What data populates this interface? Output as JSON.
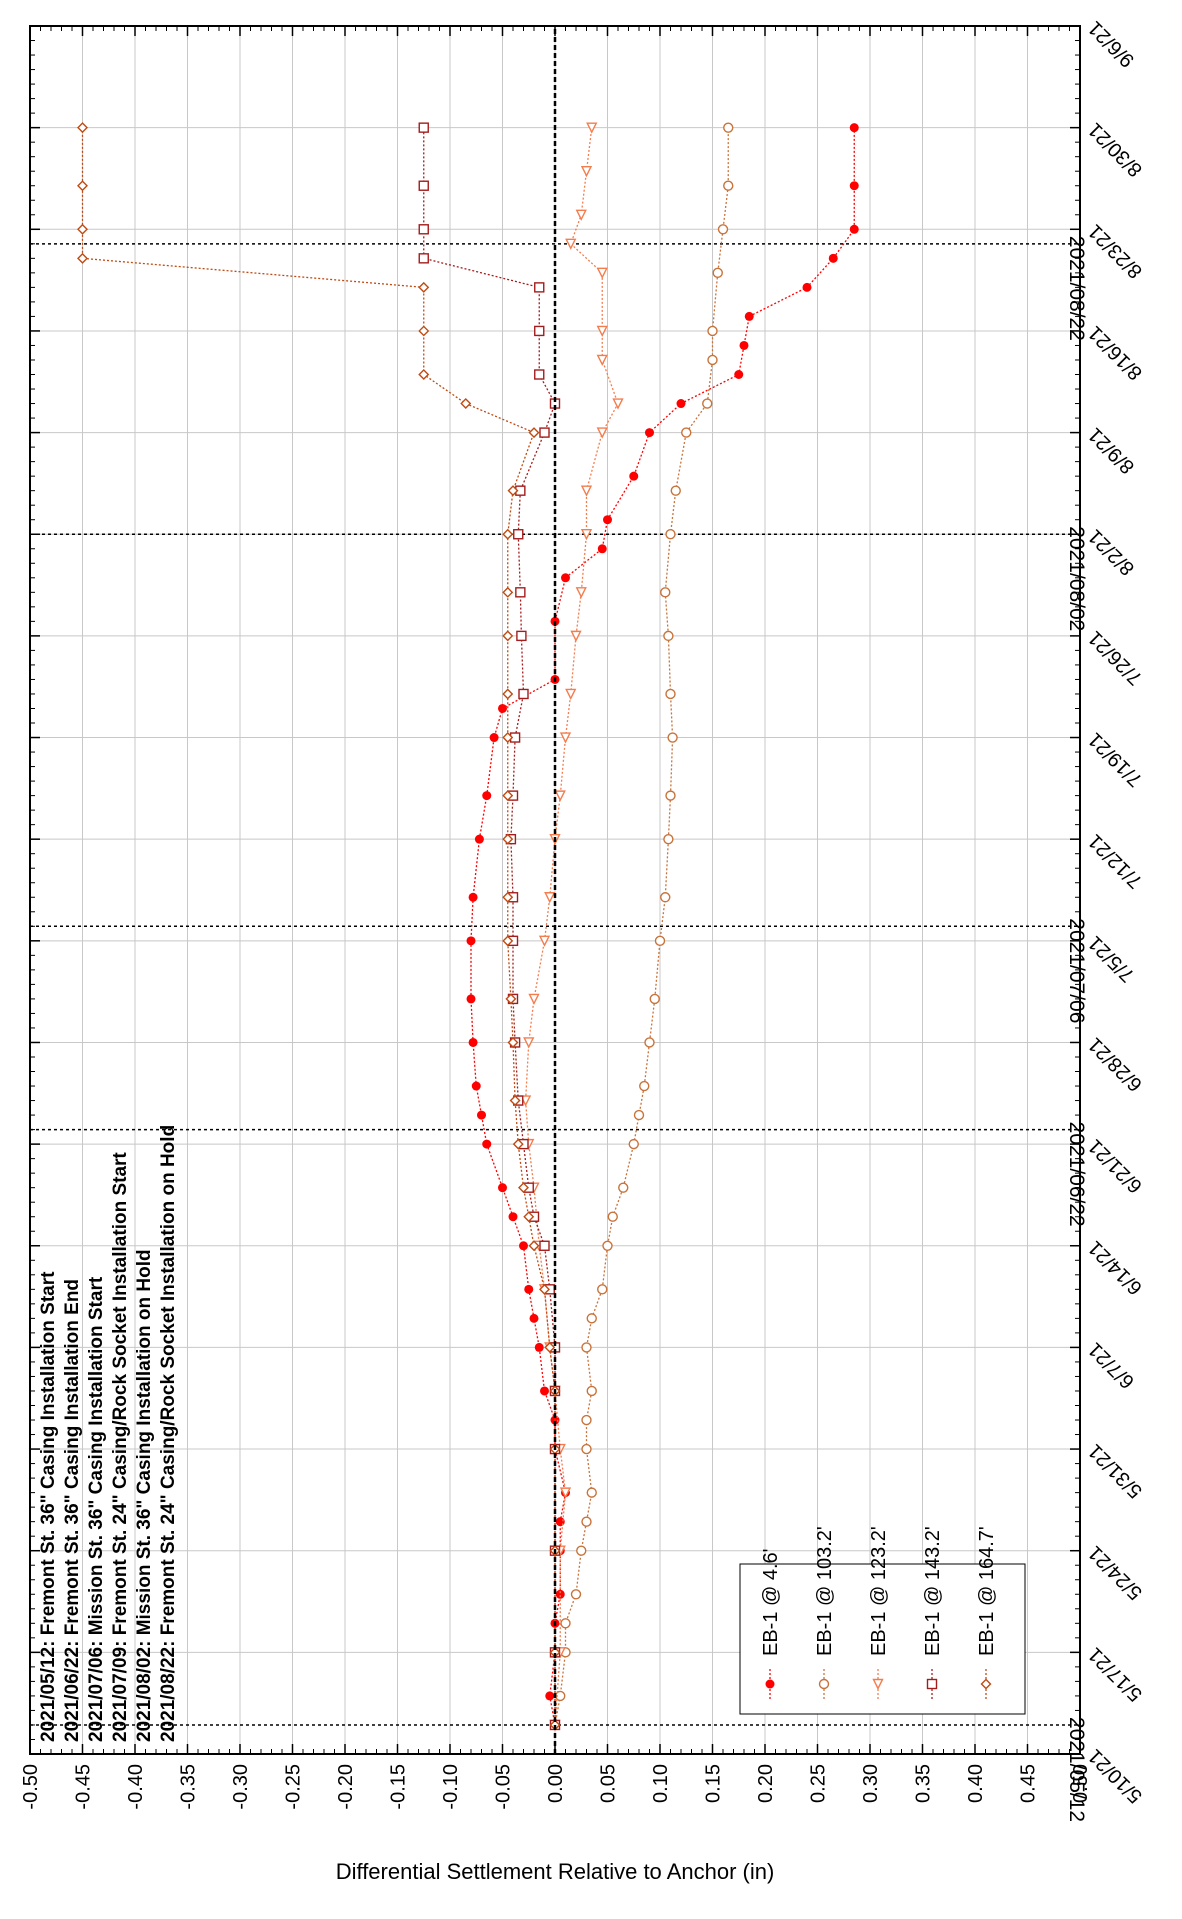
{
  "chart_data": {
    "type": "scatter",
    "ylabel": "Differential Settlement Relative to Anchor (in)",
    "ylim": [
      -0.5,
      0.5
    ],
    "y_ticks": [
      "-0.50",
      "-0.45",
      "-0.40",
      "-0.35",
      "-0.30",
      "-0.25",
      "-0.20",
      "-0.15",
      "-0.10",
      "-0.05",
      "0.00",
      "0.05",
      "0.10",
      "0.15",
      "0.20",
      "0.25",
      "0.30",
      "0.35",
      "0.40",
      "0.45",
      "0.50"
    ],
    "xlim": [
      "2021-05-10",
      "2021-09-06"
    ],
    "x_ticks": [
      "5/10/21",
      "5/17/21",
      "5/24/21",
      "5/31/21",
      "6/7/21",
      "6/14/21",
      "6/21/21",
      "6/28/21",
      "7/5/21",
      "7/12/21",
      "7/19/21",
      "7/26/21",
      "8/2/21",
      "8/9/21",
      "8/16/21",
      "8/23/21",
      "8/30/21",
      "9/6/21"
    ],
    "x_tick_dates": [
      "2021-05-10",
      "2021-05-17",
      "2021-05-24",
      "2021-05-31",
      "2021-06-07",
      "2021-06-14",
      "2021-06-21",
      "2021-06-28",
      "2021-07-05",
      "2021-07-12",
      "2021-07-19",
      "2021-07-26",
      "2021-08-02",
      "2021-08-09",
      "2021-08-16",
      "2021-08-23",
      "2021-08-30",
      "2021-09-06"
    ],
    "grid": true,
    "legend_position": "bottom-left",
    "annotation_lines": [
      {
        "date": "2021-05-12",
        "label": "2021/05/12"
      },
      {
        "date": "2021-06-22",
        "label": "2021/06/22"
      },
      {
        "date": "2021-07-06",
        "label": "2021/07/06"
      },
      {
        "date": "2021-08-02",
        "label": "2021/08/02"
      },
      {
        "date": "2021-08-22",
        "label": "2021/08/22"
      }
    ],
    "events": [
      "2021/05/12: Fremont St. 36\" Casing Installation Start",
      "2021/06/22: Fremont St. 36\" Casing Installation End",
      "2021/07/06: Mission St. 36\" Casing Installation Start",
      "2021/07/09: Fremont St. 24\" Casing/Rock Socket Installation Start",
      "2021/08/02: Mission St. 36\" Casing Installation on Hold",
      "2021/08/22: Fremont St. 24\" Casing/Rock Socket Installation on Hold"
    ],
    "series": [
      {
        "name": "EB-1 @ 4.6'",
        "color": "#ff0000",
        "marker": "filled-circle",
        "points": [
          [
            "2021-05-12",
            0.0
          ],
          [
            "2021-05-14",
            -0.005
          ],
          [
            "2021-05-17",
            0.0
          ],
          [
            "2021-05-19",
            0.0
          ],
          [
            "2021-05-21",
            0.005
          ],
          [
            "2021-05-24",
            0.005
          ],
          [
            "2021-05-26",
            0.005
          ],
          [
            "2021-05-28",
            0.01
          ],
          [
            "2021-05-31",
            0.0
          ],
          [
            "2021-06-02",
            0.0
          ],
          [
            "2021-06-04",
            -0.01
          ],
          [
            "2021-06-07",
            -0.015
          ],
          [
            "2021-06-09",
            -0.02
          ],
          [
            "2021-06-11",
            -0.025
          ],
          [
            "2021-06-14",
            -0.03
          ],
          [
            "2021-06-16",
            -0.04
          ],
          [
            "2021-06-18",
            -0.05
          ],
          [
            "2021-06-21",
            -0.065
          ],
          [
            "2021-06-23",
            -0.07
          ],
          [
            "2021-06-25",
            -0.075
          ],
          [
            "2021-06-28",
            -0.078
          ],
          [
            "2021-07-01",
            -0.08
          ],
          [
            "2021-07-05",
            -0.08
          ],
          [
            "2021-07-08",
            -0.078
          ],
          [
            "2021-07-12",
            -0.072
          ],
          [
            "2021-07-15",
            -0.065
          ],
          [
            "2021-07-19",
            -0.058
          ],
          [
            "2021-07-21",
            -0.05
          ],
          [
            "2021-07-23",
            0.0
          ],
          [
            "2021-07-27",
            0.0
          ],
          [
            "2021-07-30",
            0.01
          ],
          [
            "2021-08-01",
            0.045
          ],
          [
            "2021-08-03",
            0.05
          ],
          [
            "2021-08-06",
            0.075
          ],
          [
            "2021-08-09",
            0.09
          ],
          [
            "2021-08-11",
            0.12
          ],
          [
            "2021-08-13",
            0.175
          ],
          [
            "2021-08-15",
            0.18
          ],
          [
            "2021-08-17",
            0.185
          ],
          [
            "2021-08-19",
            0.24
          ],
          [
            "2021-08-21",
            0.265
          ],
          [
            "2021-08-23",
            0.285
          ],
          [
            "2021-08-26",
            0.285
          ],
          [
            "2021-08-30",
            0.285
          ]
        ]
      },
      {
        "name": "EB-1 @ 103.2'",
        "color": "#c8733a",
        "marker": "open-circle",
        "points": [
          [
            "2021-05-12",
            0.0
          ],
          [
            "2021-05-14",
            0.005
          ],
          [
            "2021-05-17",
            0.01
          ],
          [
            "2021-05-19",
            0.01
          ],
          [
            "2021-05-21",
            0.02
          ],
          [
            "2021-05-24",
            0.025
          ],
          [
            "2021-05-26",
            0.03
          ],
          [
            "2021-05-28",
            0.035
          ],
          [
            "2021-05-31",
            0.03
          ],
          [
            "2021-06-02",
            0.03
          ],
          [
            "2021-06-04",
            0.035
          ],
          [
            "2021-06-07",
            0.03
          ],
          [
            "2021-06-09",
            0.035
          ],
          [
            "2021-06-11",
            0.045
          ],
          [
            "2021-06-14",
            0.05
          ],
          [
            "2021-06-16",
            0.055
          ],
          [
            "2021-06-18",
            0.065
          ],
          [
            "2021-06-21",
            0.075
          ],
          [
            "2021-06-23",
            0.08
          ],
          [
            "2021-06-25",
            0.085
          ],
          [
            "2021-06-28",
            0.09
          ],
          [
            "2021-07-01",
            0.095
          ],
          [
            "2021-07-05",
            0.1
          ],
          [
            "2021-07-08",
            0.105
          ],
          [
            "2021-07-12",
            0.108
          ],
          [
            "2021-07-15",
            0.11
          ],
          [
            "2021-07-19",
            0.112
          ],
          [
            "2021-07-22",
            0.11
          ],
          [
            "2021-07-26",
            0.108
          ],
          [
            "2021-07-29",
            0.105
          ],
          [
            "2021-08-02",
            0.11
          ],
          [
            "2021-08-05",
            0.115
          ],
          [
            "2021-08-09",
            0.125
          ],
          [
            "2021-08-11",
            0.145
          ],
          [
            "2021-08-14",
            0.15
          ],
          [
            "2021-08-16",
            0.15
          ],
          [
            "2021-08-20",
            0.155
          ],
          [
            "2021-08-23",
            0.16
          ],
          [
            "2021-08-26",
            0.165
          ],
          [
            "2021-08-30",
            0.165
          ]
        ]
      },
      {
        "name": "EB-1 @ 123.2'",
        "color": "#f47d4e",
        "marker": "open-triangle",
        "points": [
          [
            "2021-05-12",
            0.0
          ],
          [
            "2021-05-17",
            0.005
          ],
          [
            "2021-05-24",
            0.005
          ],
          [
            "2021-05-28",
            0.01
          ],
          [
            "2021-05-31",
            0.005
          ],
          [
            "2021-06-04",
            0.0
          ],
          [
            "2021-06-07",
            -0.005
          ],
          [
            "2021-06-11",
            -0.01
          ],
          [
            "2021-06-14",
            -0.015
          ],
          [
            "2021-06-18",
            -0.02
          ],
          [
            "2021-06-21",
            -0.025
          ],
          [
            "2021-06-24",
            -0.028
          ],
          [
            "2021-06-28",
            -0.025
          ],
          [
            "2021-07-01",
            -0.02
          ],
          [
            "2021-07-05",
            -0.01
          ],
          [
            "2021-07-08",
            -0.005
          ],
          [
            "2021-07-12",
            0.0
          ],
          [
            "2021-07-15",
            0.005
          ],
          [
            "2021-07-19",
            0.01
          ],
          [
            "2021-07-22",
            0.015
          ],
          [
            "2021-07-26",
            0.02
          ],
          [
            "2021-07-29",
            0.025
          ],
          [
            "2021-08-02",
            0.03
          ],
          [
            "2021-08-05",
            0.03
          ],
          [
            "2021-08-09",
            0.045
          ],
          [
            "2021-08-11",
            0.06
          ],
          [
            "2021-08-14",
            0.045
          ],
          [
            "2021-08-16",
            0.045
          ],
          [
            "2021-08-20",
            0.045
          ],
          [
            "2021-08-22",
            0.015
          ],
          [
            "2021-08-24",
            0.025
          ],
          [
            "2021-08-27",
            0.03
          ],
          [
            "2021-08-30",
            0.035
          ]
        ]
      },
      {
        "name": "EB-1 @ 143.2'",
        "color": "#a31d1d",
        "marker": "open-square",
        "points": [
          [
            "2021-05-12",
            0.0
          ],
          [
            "2021-05-17",
            0.0
          ],
          [
            "2021-05-24",
            0.0
          ],
          [
            "2021-05-31",
            0.0
          ],
          [
            "2021-06-04",
            0.0
          ],
          [
            "2021-06-07",
            0.0
          ],
          [
            "2021-06-11",
            -0.005
          ],
          [
            "2021-06-14",
            -0.01
          ],
          [
            "2021-06-16",
            -0.02
          ],
          [
            "2021-06-18",
            -0.025
          ],
          [
            "2021-06-21",
            -0.03
          ],
          [
            "2021-06-24",
            -0.035
          ],
          [
            "2021-06-28",
            -0.038
          ],
          [
            "2021-07-01",
            -0.04
          ],
          [
            "2021-07-05",
            -0.04
          ],
          [
            "2021-07-08",
            -0.04
          ],
          [
            "2021-07-12",
            -0.042
          ],
          [
            "2021-07-15",
            -0.04
          ],
          [
            "2021-07-19",
            -0.038
          ],
          [
            "2021-07-22",
            -0.03
          ],
          [
            "2021-07-26",
            -0.032
          ],
          [
            "2021-07-29",
            -0.033
          ],
          [
            "2021-08-02",
            -0.035
          ],
          [
            "2021-08-05",
            -0.033
          ],
          [
            "2021-08-09",
            -0.01
          ],
          [
            "2021-08-11",
            0.0
          ],
          [
            "2021-08-13",
            -0.015
          ],
          [
            "2021-08-16",
            -0.015
          ],
          [
            "2021-08-19",
            -0.015
          ],
          [
            "2021-08-21",
            -0.125
          ],
          [
            "2021-08-23",
            -0.125
          ],
          [
            "2021-08-26",
            -0.125
          ],
          [
            "2021-08-30",
            -0.125
          ]
        ]
      },
      {
        "name": "EB-1 @ 164.7'",
        "color": "#c04a12",
        "marker": "open-diamond",
        "points": [
          [
            "2021-05-12",
            0.0
          ],
          [
            "2021-05-17",
            0.0
          ],
          [
            "2021-05-24",
            0.0
          ],
          [
            "2021-05-31",
            0.0
          ],
          [
            "2021-06-04",
            0.0
          ],
          [
            "2021-06-07",
            -0.005
          ],
          [
            "2021-06-11",
            -0.01
          ],
          [
            "2021-06-14",
            -0.02
          ],
          [
            "2021-06-16",
            -0.025
          ],
          [
            "2021-06-18",
            -0.03
          ],
          [
            "2021-06-21",
            -0.035
          ],
          [
            "2021-06-24",
            -0.038
          ],
          [
            "2021-06-28",
            -0.04
          ],
          [
            "2021-07-01",
            -0.042
          ],
          [
            "2021-07-05",
            -0.045
          ],
          [
            "2021-07-08",
            -0.045
          ],
          [
            "2021-07-12",
            -0.045
          ],
          [
            "2021-07-15",
            -0.045
          ],
          [
            "2021-07-19",
            -0.045
          ],
          [
            "2021-07-22",
            -0.045
          ],
          [
            "2021-07-26",
            -0.045
          ],
          [
            "2021-07-29",
            -0.045
          ],
          [
            "2021-08-02",
            -0.045
          ],
          [
            "2021-08-05",
            -0.04
          ],
          [
            "2021-08-09",
            -0.02
          ],
          [
            "2021-08-11",
            -0.085
          ],
          [
            "2021-08-13",
            -0.125
          ],
          [
            "2021-08-16",
            -0.125
          ],
          [
            "2021-08-19",
            -0.125
          ],
          [
            "2021-08-21",
            -0.45
          ],
          [
            "2021-08-23",
            -0.45
          ],
          [
            "2021-08-26",
            -0.45
          ],
          [
            "2021-08-30",
            -0.45
          ]
        ]
      }
    ]
  }
}
